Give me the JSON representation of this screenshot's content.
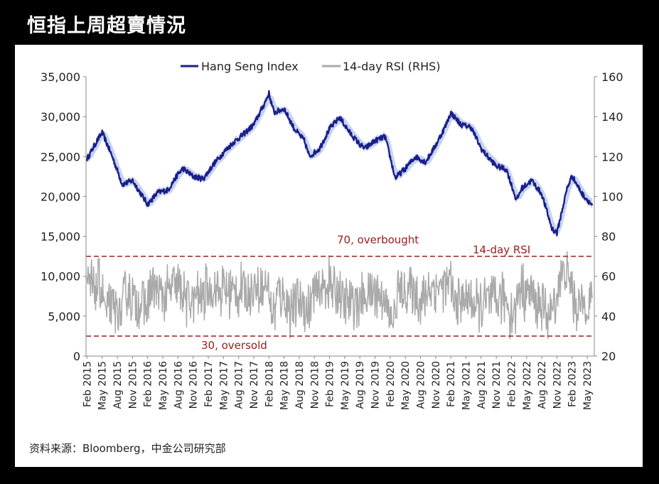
{
  "page_title": "恒指上周超賣情況",
  "source": "资料来源：Bloomberg，中金公司研究部",
  "colors": {
    "hsi": "#1b1e8a",
    "band": "#c6d5ee",
    "rsi": "#a9a9a9",
    "threshold": "#9a1b1b"
  },
  "chart_data": {
    "type": "line",
    "legend": {
      "placement": "top-center",
      "entries": [
        "Hang Seng Index",
        "14-day RSI (RHS)"
      ]
    },
    "left_axis": {
      "ylim": [
        0,
        35000
      ],
      "ticks": [
        "0",
        "5,000",
        "10,000",
        "15,000",
        "20,000",
        "25,000",
        "30,000",
        "35,000"
      ]
    },
    "right_axis": {
      "ylim": [
        20,
        160
      ],
      "ticks": [
        "20",
        "40",
        "60",
        "80",
        "100",
        "120",
        "140",
        "160"
      ]
    },
    "x_ticks": [
      "Feb 2015",
      "May 2015",
      "Aug 2015",
      "Nov 2015",
      "Feb 2016",
      "May 2016",
      "Aug 2016",
      "Nov 2016",
      "Feb 2017",
      "May 2017",
      "Aug 2017",
      "Nov 2017",
      "Feb 2018",
      "May 2018",
      "Aug 2018",
      "Nov 2018",
      "Feb 2019",
      "May 2019",
      "Aug 2019",
      "Nov 2019",
      "Feb 2020",
      "May 2020",
      "Aug 2020",
      "Nov 2020",
      "Feb 2021",
      "May 2021",
      "Aug 2021",
      "Nov 2021",
      "Feb 2022",
      "May 2022",
      "Aug 2022",
      "Nov 2022",
      "Feb 2023",
      "May 2023"
    ],
    "thresholds": [
      {
        "value": 70,
        "label": "70, overbought"
      },
      {
        "value": 30,
        "label": "30, oversold"
      }
    ],
    "annotations": [
      "14-day RSI"
    ],
    "series": [
      {
        "name": "Hang Seng Index",
        "axis": "left",
        "x": [
          "Feb 2015",
          "Apr 2015",
          "May 2015",
          "Jul 2015",
          "Sep 2015",
          "Nov 2015",
          "Feb 2016",
          "Apr 2016",
          "Jun 2016",
          "Aug 2016",
          "Sep 2016",
          "Nov 2016",
          "Jan 2017",
          "Mar 2017",
          "May 2017",
          "Jul 2017",
          "Sep 2017",
          "Nov 2017",
          "Jan 2018",
          "Feb 2018",
          "Mar 2018",
          "May 2018",
          "Jul 2018",
          "Sep 2018",
          "Oct 2018",
          "Dec 2018",
          "Feb 2019",
          "Apr 2019",
          "Jun 2019",
          "Aug 2019",
          "Sep 2019",
          "Nov 2019",
          "Jan 2020",
          "Mar 2020",
          "May 2020",
          "Jul 2020",
          "Sep 2020",
          "Nov 2020",
          "Jan 2021",
          "Feb 2021",
          "Apr 2021",
          "Jun 2021",
          "Aug 2021",
          "Sep 2021",
          "Nov 2021",
          "Jan 2022",
          "Mar 2022",
          "Apr 2022",
          "Jun 2022",
          "Aug 2022",
          "Oct 2022",
          "Nov 2022",
          "Jan 2023",
          "Feb 2023",
          "Apr 2023",
          "Jun 2023"
        ],
        "values": [
          24700,
          27000,
          28000,
          25000,
          21500,
          22000,
          19000,
          20500,
          20800,
          22800,
          23500,
          22500,
          22200,
          24000,
          25500,
          26800,
          27800,
          29000,
          31500,
          32900,
          30500,
          31000,
          28500,
          27000,
          25000,
          26000,
          28500,
          29900,
          28000,
          26500,
          26000,
          27000,
          27500,
          22300,
          23500,
          25000,
          24300,
          26400,
          28900,
          30500,
          29000,
          28700,
          26000,
          25200,
          23800,
          23400,
          19500,
          21000,
          22000,
          20300,
          16000,
          15400,
          21000,
          22600,
          20300,
          18900
        ]
      },
      {
        "name": "14-day RSI (RHS)",
        "axis": "right",
        "style": "noisy oscillator between roughly 25 and 90"
      }
    ]
  }
}
